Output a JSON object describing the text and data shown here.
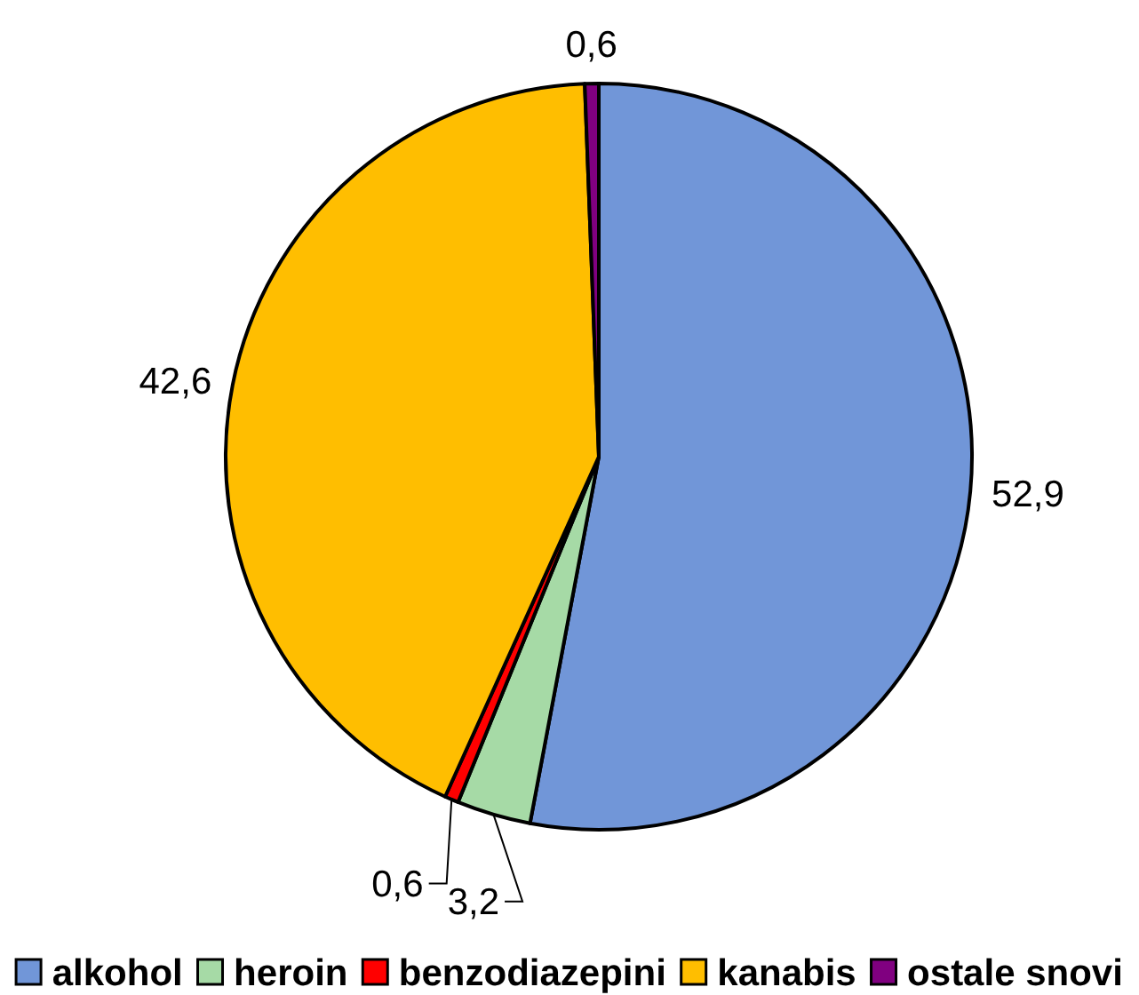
{
  "chart_data": {
    "type": "pie",
    "categories": [
      "alkohol",
      "heroin",
      "benzodiazepini",
      "kanabis",
      "ostale snovi"
    ],
    "values": [
      52.9,
      3.2,
      0.6,
      42.6,
      0.6
    ],
    "value_labels": [
      "52,9",
      "3,2",
      "0,6",
      "42,6",
      "0,6"
    ],
    "colors": [
      "#7196d8",
      "#a6daa6",
      "#ff0000",
      "#ffbe00",
      "#800080"
    ],
    "legend": "bottom"
  }
}
